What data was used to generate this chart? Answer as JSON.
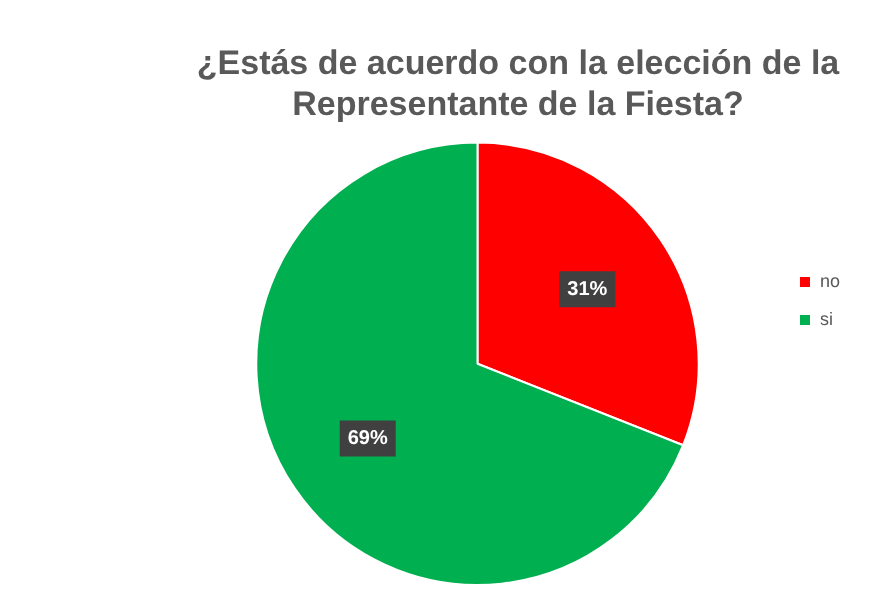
{
  "chart_data": {
    "type": "pie",
    "title": "¿Estás de acuerdo con la elección de la Representante de la Fiesta?",
    "categories": [
      "no",
      "si"
    ],
    "values": [
      31,
      69
    ],
    "colors": [
      "#ff0000",
      "#00b050"
    ],
    "value_labels": [
      "31%",
      "69%"
    ],
    "legend": "right"
  }
}
